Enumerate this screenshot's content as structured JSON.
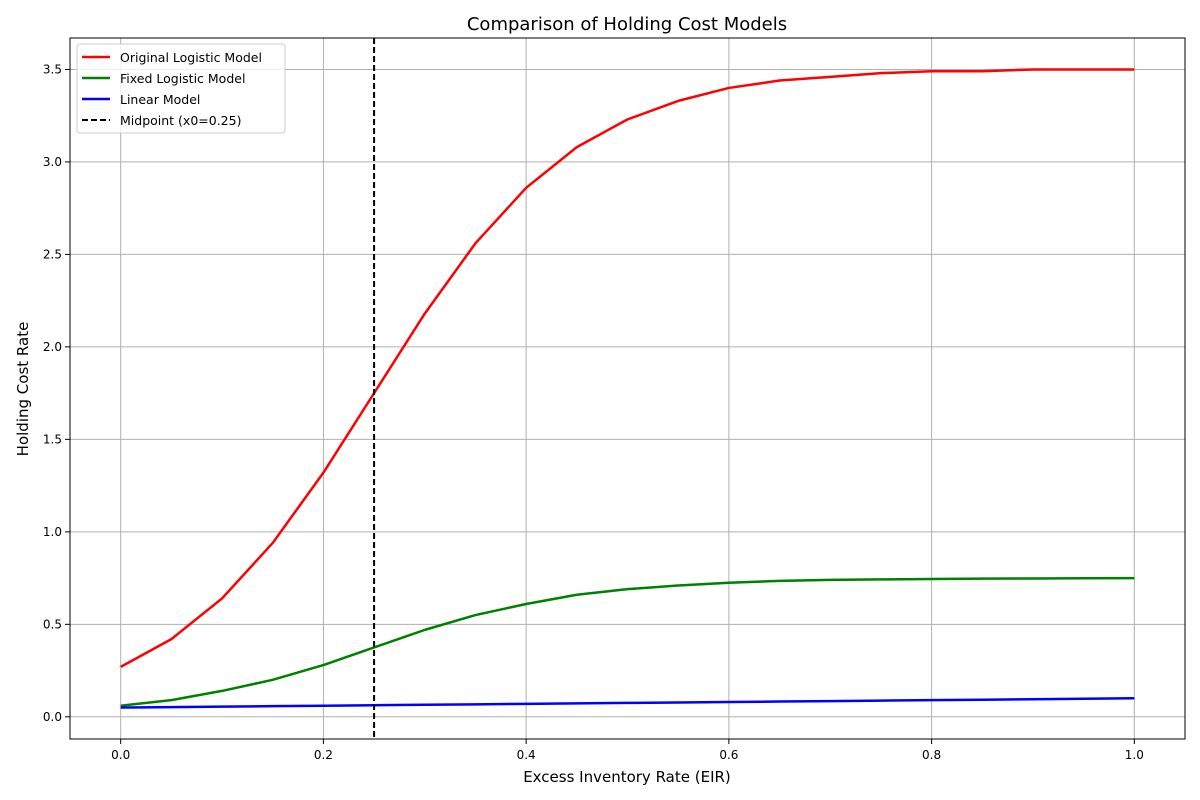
{
  "chart_data": {
    "type": "line",
    "title": "Comparison of Holding Cost Models",
    "xlabel": "Excess Inventory Rate (EIR)",
    "ylabel": "Holding Cost Rate",
    "xlim": [
      -0.05,
      1.05
    ],
    "ylim": [
      -0.12,
      3.67
    ],
    "xticks": [
      0.0,
      0.2,
      0.4,
      0.6,
      0.8,
      1.0
    ],
    "yticks": [
      0.0,
      0.5,
      1.0,
      1.5,
      2.0,
      2.5,
      3.0,
      3.5
    ],
    "xtick_labels": [
      "0.0",
      "0.2",
      "0.4",
      "0.6",
      "0.8",
      "1.0"
    ],
    "ytick_labels": [
      "0.0",
      "0.5",
      "1.0",
      "1.5",
      "2.0",
      "2.5",
      "3.0",
      "3.5"
    ],
    "grid": true,
    "legend_position": "upper-left",
    "x": [
      0.0,
      0.05,
      0.1,
      0.15,
      0.2,
      0.25,
      0.3,
      0.35,
      0.4,
      0.45,
      0.5,
      0.55,
      0.6,
      0.65,
      0.7,
      0.75,
      0.8,
      0.85,
      0.9,
      0.95,
      1.0
    ],
    "series": [
      {
        "name": "Original Logistic Model",
        "color": "#ff0000",
        "style": "solid",
        "values": [
          0.27,
          0.42,
          0.64,
          0.94,
          1.32,
          1.75,
          2.18,
          2.56,
          2.86,
          3.08,
          3.23,
          3.33,
          3.4,
          3.44,
          3.46,
          3.48,
          3.49,
          3.49,
          3.5,
          3.5,
          3.5
        ]
      },
      {
        "name": "Fixed Logistic Model",
        "color": "#008000",
        "style": "solid",
        "values": [
          0.06,
          0.09,
          0.14,
          0.2,
          0.28,
          0.375,
          0.47,
          0.55,
          0.61,
          0.66,
          0.69,
          0.71,
          0.725,
          0.735,
          0.74,
          0.743,
          0.745,
          0.747,
          0.748,
          0.749,
          0.75
        ]
      },
      {
        "name": "Linear Model",
        "color": "#0000ff",
        "style": "solid",
        "values": [
          0.05,
          0.0525,
          0.055,
          0.0575,
          0.06,
          0.0625,
          0.065,
          0.0675,
          0.07,
          0.0725,
          0.075,
          0.0775,
          0.08,
          0.0825,
          0.085,
          0.0875,
          0.09,
          0.0925,
          0.095,
          0.0975,
          0.1
        ]
      }
    ],
    "reference_line": {
      "name": "Midpoint (x0=0.25)",
      "x": 0.25,
      "color": "#000000",
      "style": "dashed"
    }
  }
}
